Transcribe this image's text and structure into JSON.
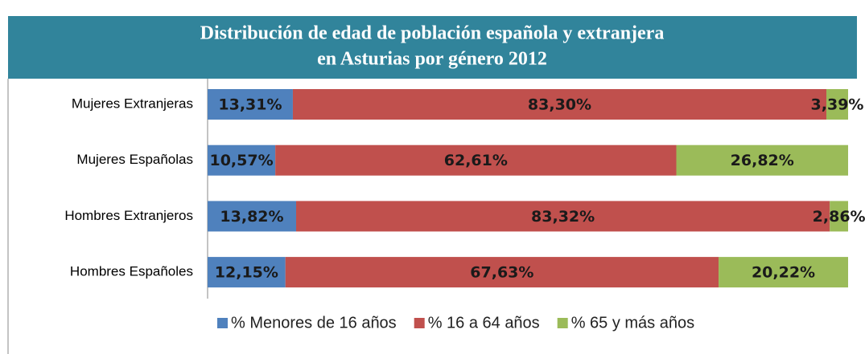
{
  "chart_data": {
    "type": "stacked-bar-horizontal",
    "title": [
      "Distribución de edad de población española y extranjera",
      "en Asturias  por género 2012"
    ],
    "categories": [
      "Mujeres Extranjeras",
      "Mujeres Españolas",
      "Hombres Extranjeros",
      "Hombres Españoles"
    ],
    "series": [
      {
        "name": "% Menores de 16 años",
        "color": "#4f81bd",
        "values": [
          13.31,
          10.57,
          13.82,
          12.15
        ],
        "value_labels": [
          "13,31%",
          "10,57%",
          "13,82%",
          "12,15%"
        ]
      },
      {
        "name": "% 16 a 64 años",
        "color": "#c0504d",
        "values": [
          83.3,
          62.61,
          83.32,
          67.63
        ],
        "value_labels": [
          "83,30%",
          "62,61%",
          "83,32%",
          "67,63%"
        ]
      },
      {
        "name": "% 65 y más años",
        "color": "#9bbb59",
        "values": [
          3.39,
          26.82,
          2.86,
          20.22
        ],
        "value_labels": [
          "3,39%",
          "26,82%",
          "2,86%",
          "20,22%"
        ]
      }
    ],
    "xlim": [
      0,
      100
    ],
    "legend": "bottom"
  }
}
